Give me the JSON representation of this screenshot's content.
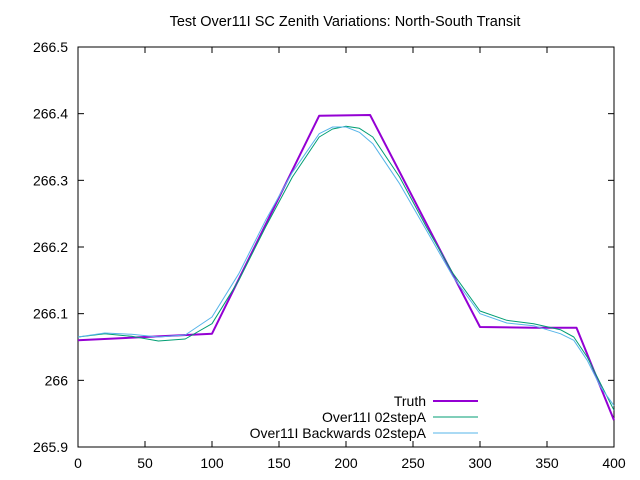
{
  "chart_data": {
    "type": "line",
    "title": "Test Over11I SC Zenith Variations: North-South Transit",
    "xlabel": "",
    "ylabel": "",
    "xlim": [
      0,
      400
    ],
    "ylim": [
      265.9,
      266.5
    ],
    "xticks": [
      0,
      50,
      100,
      150,
      200,
      250,
      300,
      350,
      400
    ],
    "yticks": [
      265.9,
      266,
      266.1,
      266.2,
      266.3,
      266.4,
      266.5
    ],
    "xtick_labels": [
      "0",
      "50",
      "100",
      "150",
      "200",
      "250",
      "300",
      "350",
      "400"
    ],
    "ytick_labels": [
      "265.9",
      "266",
      "266.1",
      "266.2",
      "266.3",
      "266.4",
      "266.5"
    ],
    "grid": false,
    "legend_position": "bottom-right",
    "series": [
      {
        "name": "Truth",
        "color": "#9400d3",
        "width": 2,
        "x": [
          0,
          100,
          180,
          218,
          300,
          340,
          372,
          400
        ],
        "y": [
          266.06,
          266.07,
          266.397,
          266.398,
          266.08,
          266.079,
          266.079,
          265.94
        ]
      },
      {
        "name": "Over11I 02stepA",
        "color": "#009e73",
        "width": 1,
        "x": [
          0,
          20,
          40,
          60,
          80,
          100,
          120,
          140,
          160,
          180,
          190,
          200,
          210,
          220,
          240,
          260,
          280,
          300,
          320,
          340,
          360,
          370,
          380,
          390,
          400
        ],
        "y": [
          266.065,
          266.07,
          266.066,
          266.059,
          266.062,
          266.085,
          266.15,
          266.23,
          266.305,
          266.365,
          266.377,
          266.381,
          266.378,
          266.365,
          266.305,
          266.23,
          266.16,
          266.104,
          266.09,
          266.085,
          266.076,
          266.065,
          266.035,
          265.995,
          265.955
        ]
      },
      {
        "name": "Over11I Backwards 02stepA",
        "color": "#56b4e9",
        "width": 1,
        "x": [
          0,
          20,
          40,
          60,
          80,
          100,
          120,
          140,
          160,
          180,
          190,
          200,
          210,
          220,
          240,
          260,
          280,
          300,
          320,
          340,
          360,
          370,
          380,
          390,
          400
        ],
        "y": [
          266.065,
          266.071,
          266.069,
          266.065,
          266.068,
          266.095,
          266.16,
          266.24,
          266.312,
          266.37,
          266.38,
          266.38,
          266.372,
          266.355,
          266.295,
          266.225,
          266.155,
          266.1,
          266.086,
          266.082,
          266.07,
          266.06,
          266.03,
          265.99,
          265.962
        ]
      }
    ]
  }
}
